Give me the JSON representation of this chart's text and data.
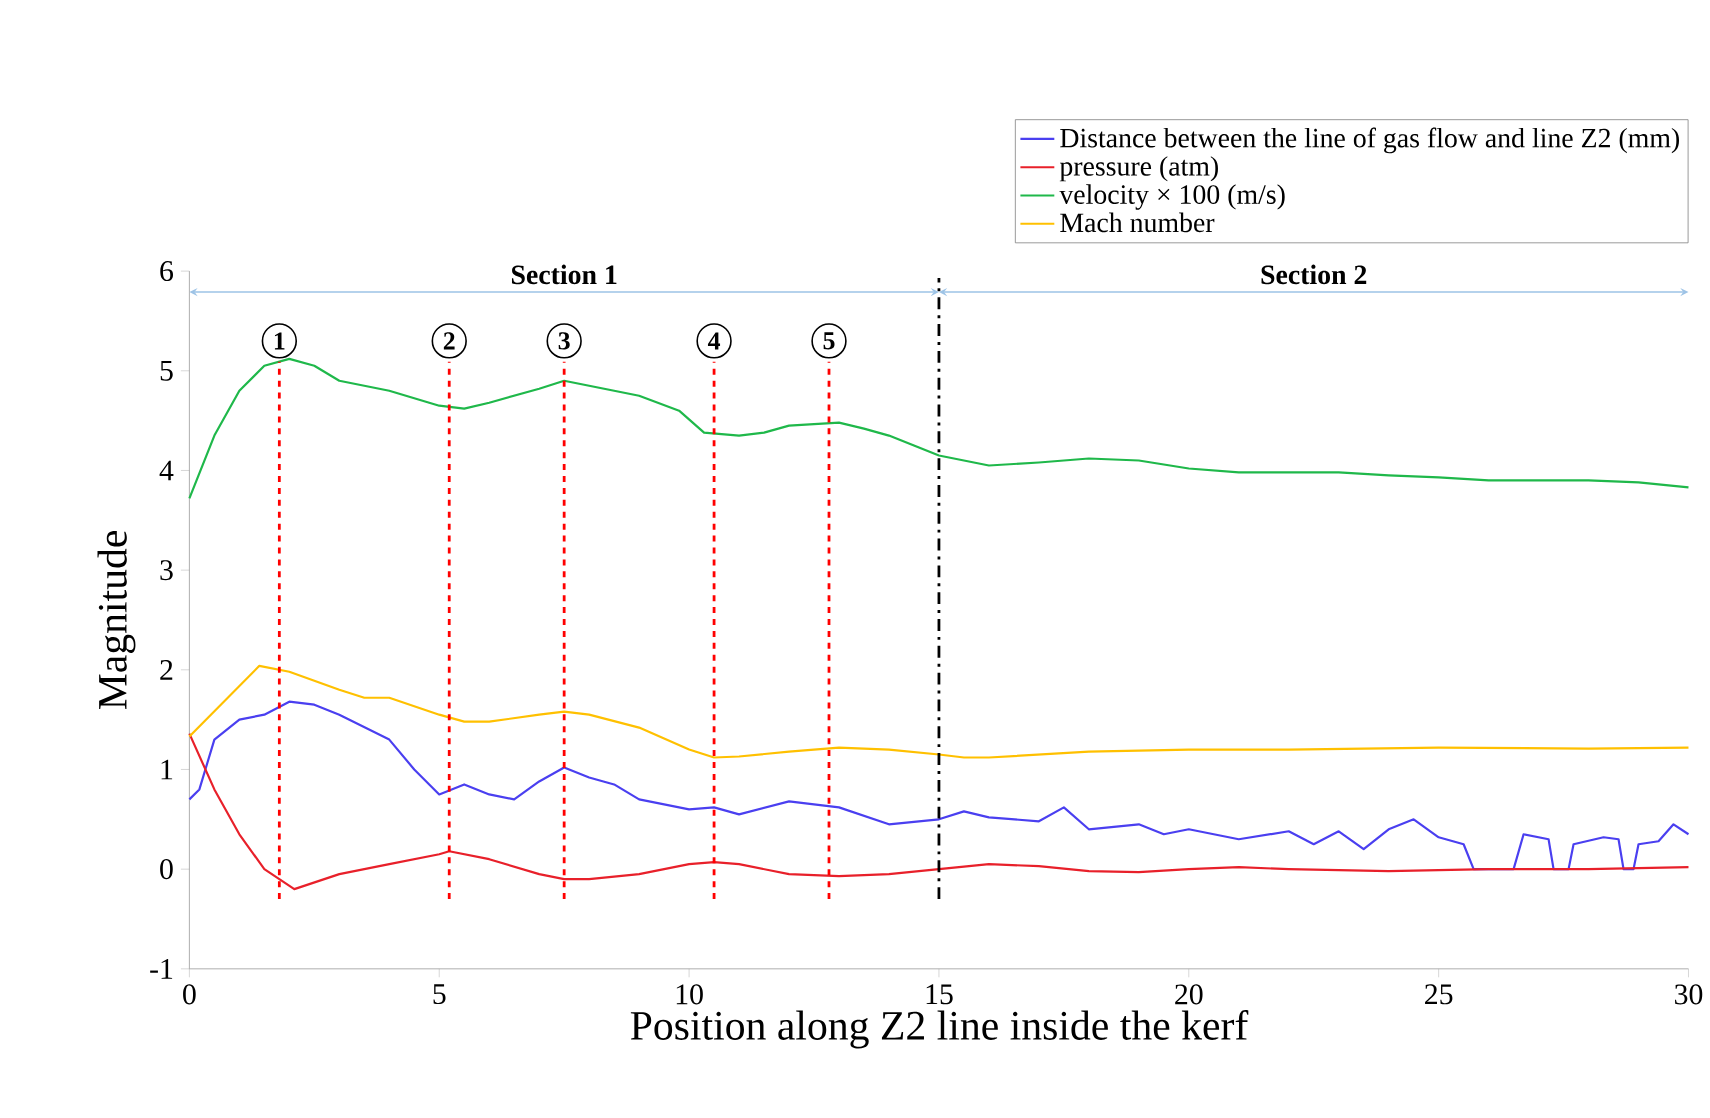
{
  "chart_data": {
    "type": "line",
    "xlabel": "Position along Z2 line inside the kerf",
    "ylabel": "Magnitude",
    "xlim": [
      0,
      30
    ],
    "ylim": [
      -1,
      6
    ],
    "xticks": [
      0,
      5,
      10,
      15,
      20,
      25,
      30
    ],
    "yticks": [
      -1,
      0,
      1,
      2,
      3,
      4,
      5,
      6
    ],
    "grid": false,
    "legend": "top right",
    "marker": "none",
    "line_style": "solid",
    "series": [
      {
        "name": "Distance between the line of gas flow and line Z2 (mm)",
        "color": "#4a3ff0",
        "x": [
          0,
          0.2,
          0.5,
          1,
          1.5,
          2,
          2.5,
          3,
          4,
          4.5,
          5,
          5.5,
          6,
          6.5,
          7,
          7.5,
          8,
          8.5,
          9,
          10,
          10.5,
          11,
          12,
          13,
          14,
          15,
          15.5,
          16,
          17,
          17.5,
          18,
          19,
          19.5,
          20,
          21,
          22,
          22.5,
          23,
          23.5,
          24,
          24.5,
          25,
          25.5,
          25.7,
          26.5,
          26.7,
          27.2,
          27.3,
          27.6,
          27.7,
          28.3,
          28.6,
          28.7,
          28.9,
          29,
          29.4,
          29.7,
          30
        ],
        "values": [
          0.7,
          0.8,
          1.3,
          1.5,
          1.55,
          1.68,
          1.65,
          1.55,
          1.3,
          1.0,
          0.75,
          0.85,
          0.75,
          0.7,
          0.88,
          1.02,
          0.92,
          0.85,
          0.7,
          0.6,
          0.62,
          0.55,
          0.68,
          0.62,
          0.45,
          0.5,
          0.58,
          0.52,
          0.48,
          0.62,
          0.4,
          0.45,
          0.35,
          0.4,
          0.3,
          0.38,
          0.25,
          0.38,
          0.2,
          0.4,
          0.5,
          0.32,
          0.25,
          0.0,
          0.0,
          0.35,
          0.3,
          0.0,
          0.0,
          0.25,
          0.32,
          0.3,
          0.0,
          0.0,
          0.25,
          0.28,
          0.45,
          0.35
        ]
      },
      {
        "name": "pressure (atm)",
        "color": "#e8202a",
        "x": [
          0,
          0.5,
          1,
          1.5,
          2.1,
          3,
          4,
          5,
          5.2,
          6,
          7,
          7.5,
          8,
          9,
          10,
          10.5,
          11,
          12,
          13,
          14,
          15,
          16,
          17,
          18,
          19,
          20,
          21,
          22,
          24,
          26,
          28,
          30
        ],
        "values": [
          1.36,
          0.8,
          0.35,
          0.0,
          -0.2,
          -0.05,
          0.05,
          0.15,
          0.18,
          0.1,
          -0.05,
          -0.1,
          -0.1,
          -0.05,
          0.05,
          0.07,
          0.05,
          -0.05,
          -0.07,
          -0.05,
          0.0,
          0.05,
          0.03,
          -0.02,
          -0.03,
          0.0,
          0.02,
          0.0,
          -0.02,
          0.0,
          0.0,
          0.02
        ]
      },
      {
        "name": "velocity × 100 (m/s)",
        "color": "#1fb84a",
        "x": [
          0,
          0.5,
          1,
          1.5,
          2,
          2.5,
          3,
          4,
          5,
          5.5,
          6,
          7,
          7.5,
          8,
          9,
          9.8,
          10.3,
          11,
          11.5,
          12,
          13,
          13.5,
          14,
          14.5,
          15,
          16,
          17,
          18,
          19,
          20,
          21,
          22,
          23,
          24,
          25,
          26,
          27,
          28,
          29,
          30
        ],
        "values": [
          3.72,
          4.35,
          4.8,
          5.05,
          5.12,
          5.05,
          4.9,
          4.8,
          4.65,
          4.62,
          4.68,
          4.82,
          4.9,
          4.85,
          4.75,
          4.6,
          4.38,
          4.35,
          4.38,
          4.45,
          4.48,
          4.42,
          4.35,
          4.25,
          4.15,
          4.05,
          4.08,
          4.12,
          4.1,
          4.02,
          3.98,
          3.98,
          3.98,
          3.95,
          3.93,
          3.9,
          3.9,
          3.9,
          3.88,
          3.83
        ]
      },
      {
        "name": "Mach number",
        "color": "#ffc000",
        "x": [
          0,
          1.4,
          2,
          3,
          3.5,
          4,
          5,
          5.5,
          6,
          7,
          7.5,
          8,
          9,
          10,
          10.5,
          11,
          12,
          13,
          14,
          15,
          15.5,
          16,
          18,
          20,
          22,
          25,
          28,
          30
        ],
        "values": [
          1.33,
          2.04,
          1.98,
          1.8,
          1.72,
          1.72,
          1.55,
          1.48,
          1.48,
          1.55,
          1.58,
          1.55,
          1.42,
          1.2,
          1.12,
          1.13,
          1.18,
          1.22,
          1.2,
          1.15,
          1.12,
          1.12,
          1.18,
          1.2,
          1.2,
          1.22,
          1.21,
          1.22
        ]
      }
    ],
    "ref_lines": [
      {
        "axis": "x",
        "value": 1.8,
        "color": "#ff0000",
        "line_style": "dashed"
      },
      {
        "axis": "x",
        "value": 5.2,
        "color": "#ff0000",
        "line_style": "dashed"
      },
      {
        "axis": "x",
        "value": 7.5,
        "color": "#ff0000",
        "line_style": "dashed"
      },
      {
        "axis": "x",
        "value": 10.5,
        "color": "#ff0000",
        "line_style": "dashed"
      },
      {
        "axis": "x",
        "value": 12.8,
        "color": "#ff0000",
        "line_style": "dashed"
      },
      {
        "axis": "x",
        "value": 15,
        "color": "#000000",
        "line_style": "dashdot"
      }
    ],
    "annotations": [
      {
        "text": "1",
        "x": 1.8,
        "y": 5.3
      },
      {
        "text": "2",
        "x": 5.2,
        "y": 5.3
      },
      {
        "text": "3",
        "x": 7.5,
        "y": 5.3
      },
      {
        "text": "4",
        "x": 10.5,
        "y": 5.3
      },
      {
        "text": "5",
        "x": 12.8,
        "y": 5.3
      },
      "Section 1",
      "Section 2"
    ]
  }
}
